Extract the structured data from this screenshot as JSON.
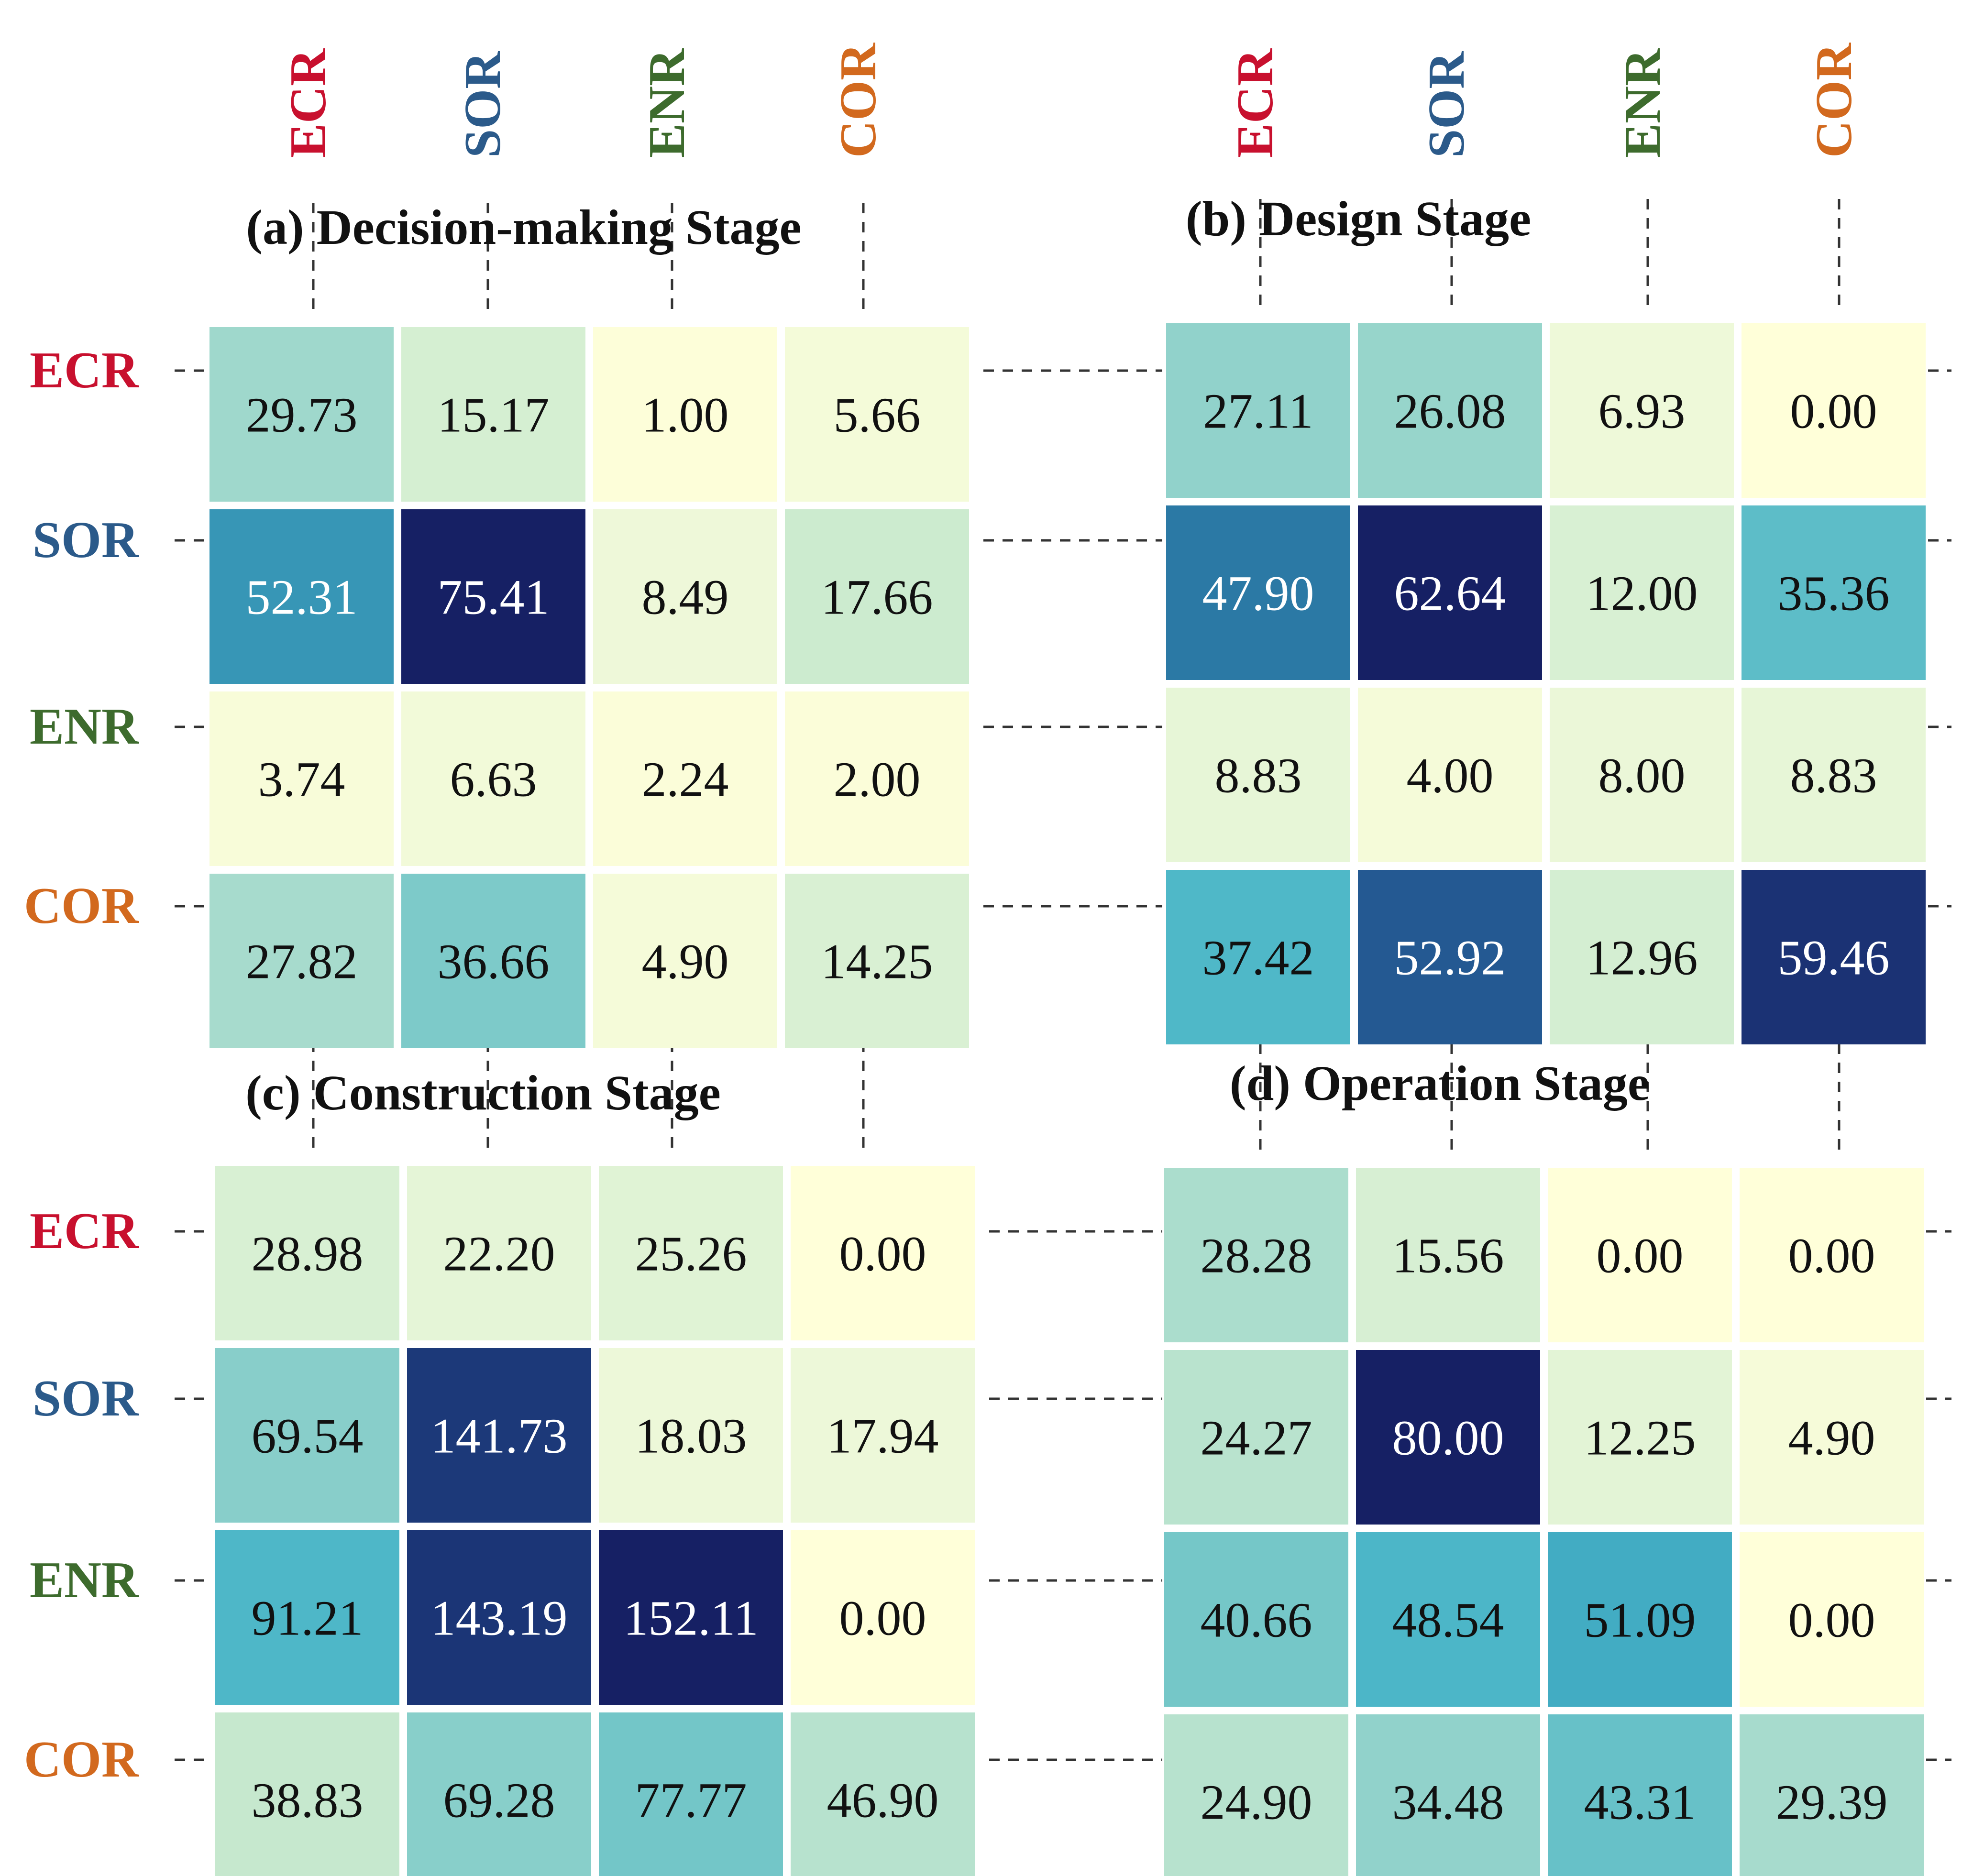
{
  "chart_data": [
    {
      "type": "heatmap",
      "title": "(a) Decision-making Stage",
      "rows": [
        "ECR",
        "SOR",
        "ENR",
        "COR"
      ],
      "cols": [
        "ECR",
        "SOR",
        "ENR",
        "COR"
      ],
      "values": [
        [
          29.73,
          15.17,
          1.0,
          5.66
        ],
        [
          52.31,
          75.41,
          8.49,
          17.66
        ],
        [
          3.74,
          6.63,
          2.24,
          2.0
        ],
        [
          27.82,
          36.66,
          4.9,
          14.25
        ]
      ]
    },
    {
      "type": "heatmap",
      "title": "(b) Design Stage",
      "rows": [
        "ECR",
        "SOR",
        "ENR",
        "COR"
      ],
      "cols": [
        "ECR",
        "SOR",
        "ENR",
        "COR"
      ],
      "values": [
        [
          27.11,
          26.08,
          6.93,
          0.0
        ],
        [
          47.9,
          62.64,
          12.0,
          35.36
        ],
        [
          8.83,
          4.0,
          8.0,
          8.83
        ],
        [
          37.42,
          52.92,
          12.96,
          59.46
        ]
      ]
    },
    {
      "type": "heatmap",
      "title": "(c) Construction Stage",
      "rows": [
        "ECR",
        "SOR",
        "ENR",
        "COR"
      ],
      "cols": [
        "ECR",
        "SOR",
        "ENR",
        "COR"
      ],
      "values": [
        [
          28.98,
          22.2,
          25.26,
          0.0
        ],
        [
          69.54,
          141.73,
          18.03,
          17.94
        ],
        [
          91.21,
          143.19,
          152.11,
          0.0
        ],
        [
          38.83,
          69.28,
          77.77,
          46.9
        ]
      ]
    },
    {
      "type": "heatmap",
      "title": "(d) Operation Stage",
      "rows": [
        "ECR",
        "SOR",
        "ENR",
        "COR"
      ],
      "cols": [
        "ECR",
        "SOR",
        "ENR",
        "COR"
      ],
      "values": [
        [
          28.28,
          15.56,
          0.0,
          0.0
        ],
        [
          24.27,
          80.0,
          12.25,
          4.9
        ],
        [
          40.66,
          48.54,
          51.09,
          0.0
        ],
        [
          24.9,
          34.48,
          43.31,
          29.39
        ]
      ]
    }
  ],
  "category_colors": {
    "ECR": "#c8102e",
    "SOR": "#2b5a8a",
    "ENR": "#3d6b2d",
    "COR": "#d2691e"
  },
  "colormap": "YlGnBu"
}
